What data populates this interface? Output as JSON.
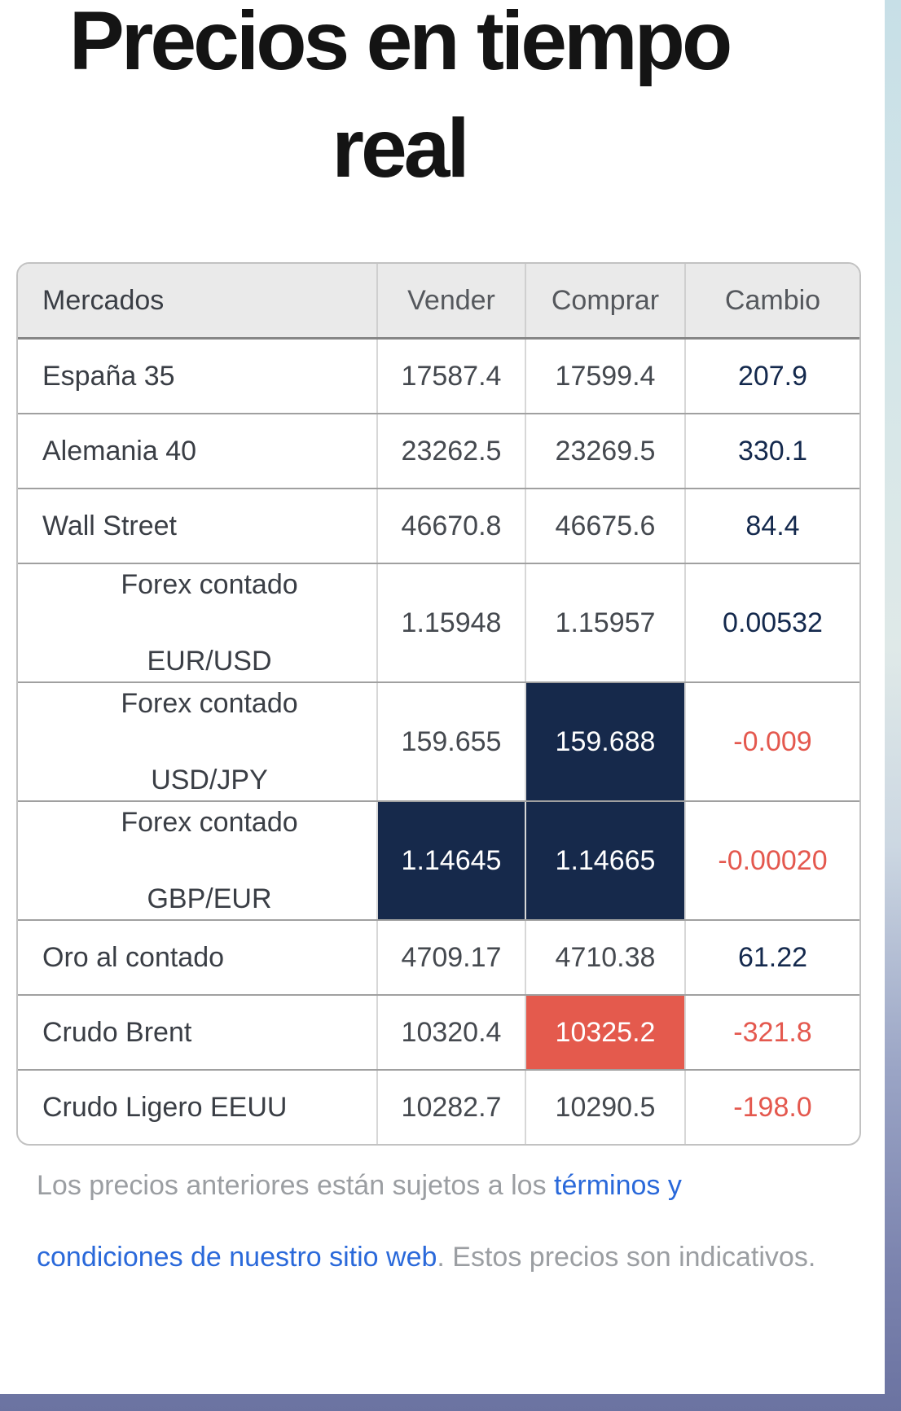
{
  "title": "Precios en tiempo real",
  "table": {
    "headers": [
      "Mercados",
      "Vender",
      "Comprar",
      "Cambio"
    ],
    "rows": [
      {
        "market_lines": [
          "España 35"
        ],
        "sell": "17587.4",
        "buy": "17599.4",
        "change": "207.9",
        "change_positive": true,
        "sell_flash": "none",
        "buy_flash": "none",
        "tall": false
      },
      {
        "market_lines": [
          "Alemania 40"
        ],
        "sell": "23262.5",
        "buy": "23269.5",
        "change": "330.1",
        "change_positive": true,
        "sell_flash": "none",
        "buy_flash": "none",
        "tall": false
      },
      {
        "market_lines": [
          "Wall Street"
        ],
        "sell": "46670.8",
        "buy": "46675.6",
        "change": "84.4",
        "change_positive": true,
        "sell_flash": "none",
        "buy_flash": "none",
        "tall": false
      },
      {
        "market_lines": [
          "Forex contado",
          "EUR/USD"
        ],
        "sell": "1.15948",
        "buy": "1.15957",
        "change": "0.00532",
        "change_positive": true,
        "sell_flash": "none",
        "buy_flash": "none",
        "tall": true
      },
      {
        "market_lines": [
          "Forex contado",
          "USD/JPY"
        ],
        "sell": "159.655",
        "buy": "159.688",
        "change": "-0.009",
        "change_positive": false,
        "sell_flash": "none",
        "buy_flash": "dark",
        "tall": true
      },
      {
        "market_lines": [
          "Forex contado",
          "GBP/EUR"
        ],
        "sell": "1.14645",
        "buy": "1.14665",
        "change": "-0.00020",
        "change_positive": false,
        "sell_flash": "dark",
        "buy_flash": "dark",
        "tall": true
      },
      {
        "market_lines": [
          "Oro al contado"
        ],
        "sell": "4709.17",
        "buy": "4710.38",
        "change": "61.22",
        "change_positive": true,
        "sell_flash": "none",
        "buy_flash": "none",
        "tall": false
      },
      {
        "market_lines": [
          "Crudo Brent"
        ],
        "sell": "10320.4",
        "buy": "10325.2",
        "change": "-321.8",
        "change_positive": false,
        "sell_flash": "none",
        "buy_flash": "red",
        "tall": false
      },
      {
        "market_lines": [
          "Crudo Ligero EEUU"
        ],
        "sell": "10282.7",
        "buy": "10290.5",
        "change": "-198.0",
        "change_positive": false,
        "sell_flash": "none",
        "buy_flash": "none",
        "tall": false
      }
    ]
  },
  "footer": {
    "before_link": "Los precios anteriores están sujetos a los ",
    "link_text": "términos y condiciones de nuestro sitio web",
    "after_link": ". Estos precios son indicativos."
  },
  "colors": {
    "flash_dark": "#16294b",
    "flash_red": "#e45a4d",
    "change_positive": "#14294d",
    "change_negative": "#e4584e",
    "link_blue": "#2a69da",
    "header_bg": "#eaeaea",
    "page_strip_top": "#c7dfe7",
    "page_strip_bottom": "#6b73a1"
  }
}
